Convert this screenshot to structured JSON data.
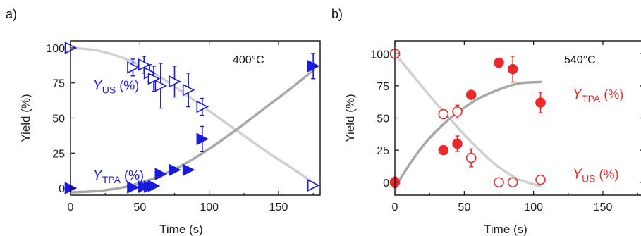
{
  "chart_data": [
    {
      "id": "a",
      "type": "scatter",
      "panel_label": "a)",
      "annotation": "400°C",
      "xlabel": "Time (s)",
      "ylabel": "Yield (%)",
      "xlim": [
        0,
        180
      ],
      "ylim": [
        -5,
        105
      ],
      "xticks": [
        0,
        50,
        100,
        150
      ],
      "yticks": [
        0,
        25,
        50,
        75,
        100
      ],
      "yticks_right": false,
      "series": [
        {
          "name": "Y_US (%)",
          "label_main": "Y",
          "label_sub": "US",
          "label_tail": " (%)",
          "label_anchor": [
            16,
            70
          ],
          "marker": "triangle-right",
          "filled": false,
          "color": "#1a1adb",
          "points": [
            {
              "x": 0,
              "y": 100
            },
            {
              "x": 45,
              "y": 86,
              "err": 6
            },
            {
              "x": 53,
              "y": 88,
              "err": 6
            },
            {
              "x": 57,
              "y": 82,
              "err": 6
            },
            {
              "x": 60,
              "y": 78,
              "err": 9
            },
            {
              "x": 65,
              "y": 73,
              "err": 16
            },
            {
              "x": 75,
              "y": 76,
              "err": 11
            },
            {
              "x": 85,
              "y": 70,
              "err": 12
            },
            {
              "x": 95,
              "y": 58,
              "err": 6
            },
            {
              "x": 175,
              "y": 2
            }
          ]
        },
        {
          "name": "Y_TPA (%)",
          "label_main": "Y",
          "label_sub": "TPA",
          "label_tail": " (%)",
          "label_anchor": [
            16,
            6
          ],
          "marker": "triangle-right",
          "filled": true,
          "color": "#1a1adb",
          "points": [
            {
              "x": 0,
              "y": 0
            },
            {
              "x": 45,
              "y": 0.5
            },
            {
              "x": 53,
              "y": 1
            },
            {
              "x": 57,
              "y": 1
            },
            {
              "x": 60,
              "y": 1.5
            },
            {
              "x": 65,
              "y": 10
            },
            {
              "x": 75,
              "y": 13
            },
            {
              "x": 85,
              "y": 13
            },
            {
              "x": 95,
              "y": 35,
              "err": 9
            },
            {
              "x": 175,
              "y": 87,
              "err": 9
            }
          ]
        }
      ],
      "fit_curves": [
        {
          "name": "fit_decay",
          "color": "#d0d0d0",
          "x": [
            0,
            20,
            40,
            60,
            80,
            100,
            120,
            140,
            160,
            175
          ],
          "y": [
            100,
            98,
            92,
            82,
            69,
            55,
            41,
            27,
            14,
            4
          ]
        },
        {
          "name": "fit_growth",
          "color": "#a8a8a8",
          "x": [
            0,
            20,
            40,
            60,
            80,
            100,
            120,
            140,
            160,
            175
          ],
          "y": [
            -3,
            -2,
            1,
            7,
            16,
            28,
            42,
            57,
            72,
            84
          ]
        }
      ]
    },
    {
      "id": "b",
      "type": "scatter",
      "panel_label": "b)",
      "annotation": "540°C",
      "xlabel": "Time (s)",
      "ylabel": "Yield (%)",
      "xlim": [
        0,
        180
      ],
      "ylim": [
        -10,
        110
      ],
      "xticks": [
        0,
        50,
        100,
        150
      ],
      "yticks": [
        0,
        25,
        50,
        75,
        100
      ],
      "yticks_right": true,
      "series": [
        {
          "name": "Y_TPA (%)",
          "label_main": "Y",
          "label_sub": "TPA",
          "label_tail": " (%)",
          "label_anchor": [
            128,
            65
          ],
          "marker": "circle",
          "filled": true,
          "color": "#ea2a2a",
          "points": [
            {
              "x": 0,
              "y": 0,
              "err": 4
            },
            {
              "x": 35,
              "y": 25
            },
            {
              "x": 45,
              "y": 30,
              "err": 6
            },
            {
              "x": 55,
              "y": 68
            },
            {
              "x": 75,
              "y": 93,
              "err": 3
            },
            {
              "x": 85,
              "y": 88,
              "err": 10
            },
            {
              "x": 105,
              "y": 62,
              "err": 8
            }
          ]
        },
        {
          "name": "Y_US (%)",
          "label_main": "Y",
          "label_sub": "US",
          "label_tail": " (%)",
          "label_anchor": [
            128,
            3
          ],
          "marker": "circle",
          "filled": false,
          "color": "#ea2a2a",
          "points": [
            {
              "x": 0,
              "y": 100
            },
            {
              "x": 35,
              "y": 53
            },
            {
              "x": 45,
              "y": 55,
              "err": 5
            },
            {
              "x": 55,
              "y": 19,
              "err": 7
            },
            {
              "x": 75,
              "y": 0
            },
            {
              "x": 85,
              "y": 0
            },
            {
              "x": 105,
              "y": 2
            }
          ]
        }
      ],
      "fit_curves": [
        {
          "name": "fit_decay",
          "color": "#d0d0d0",
          "x": [
            0,
            10,
            20,
            30,
            40,
            50,
            60,
            70,
            80,
            90,
            105
          ],
          "y": [
            100,
            87,
            74,
            61,
            49,
            37,
            26,
            16,
            8,
            2,
            -3
          ]
        },
        {
          "name": "fit_growth",
          "color": "#a8a8a8",
          "x": [
            0,
            10,
            20,
            30,
            40,
            50,
            60,
            70,
            80,
            90,
            105
          ],
          "y": [
            -4,
            13,
            28,
            40,
            50,
            58,
            65,
            70,
            74,
            77,
            78
          ]
        }
      ]
    }
  ]
}
